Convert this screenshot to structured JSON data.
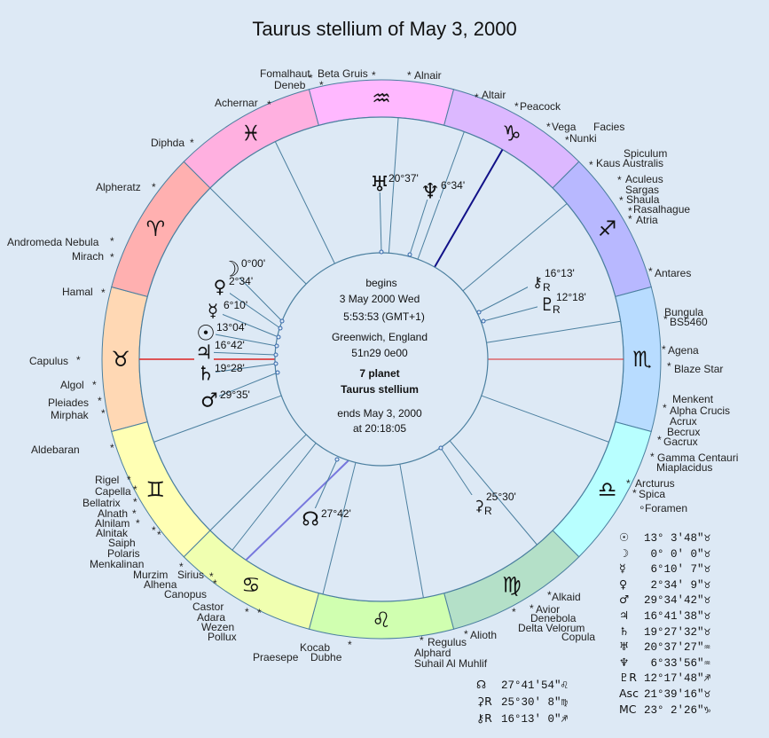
{
  "title": "Taurus stellium of May 3, 2000",
  "center": {
    "line1": "begins",
    "line2": "3 May 2000  Wed",
    "line3": "5:53:53 (GMT+1)",
    "line4": "Greenwich, England",
    "line5": "51n29  0e00",
    "line6": "7 planet",
    "line7": "Taurus stellium",
    "line8": "ends May 3, 2000",
    "line9": "at 20:18:05"
  },
  "colors": {
    "background": "#dde9f5",
    "ascendant_line": "#dd2222",
    "mc_line": "#111188",
    "node_line": "#7777dd",
    "spoke": "#4b7f9f",
    "zodiac": [
      "#ffd8b4",
      "#ffb0b0",
      "#ffb0e0",
      "#ffb8ff",
      "#dcb8ff",
      "#b8b8ff",
      "#b8dcff",
      "#b8ffff",
      "#b4e0c8",
      "#d0ffb0",
      "#f0ffb0",
      "#ffffb4"
    ]
  },
  "zodiac_glyphs": [
    "♉",
    "♈",
    "♓",
    "♒",
    "♑",
    "♐",
    "♏",
    "♎",
    "♍",
    "♌",
    "♋",
    "♊"
  ],
  "planets": [
    {
      "glyph": "☽",
      "label": "0°00'"
    },
    {
      "glyph": "♀",
      "label": "2°34'"
    },
    {
      "glyph": "☿",
      "label": "6°10'"
    },
    {
      "glyph": "☉",
      "label": "13°04'"
    },
    {
      "glyph": "♃",
      "label": "16°42'"
    },
    {
      "glyph": "♄",
      "label": "19°28'"
    },
    {
      "glyph": "♂",
      "label": "29°35'"
    },
    {
      "glyph": "♅",
      "label": "20°37'"
    },
    {
      "glyph": "♆",
      "label": "6°34'"
    },
    {
      "glyph": "⚷",
      "sub": "R",
      "label": "16°13'"
    },
    {
      "glyph": "♇",
      "sub": "R",
      "label": "12°18'"
    },
    {
      "glyph": "☊",
      "label": "27°42'"
    },
    {
      "glyph": "⚳",
      "sub": "R",
      "label": "25°30'"
    }
  ],
  "stars": [
    {
      "name": "Fomalhaut"
    },
    {
      "name": "Beta Gruis"
    },
    {
      "name": "Deneb"
    },
    {
      "name": "Alnair"
    },
    {
      "name": "Altair"
    },
    {
      "name": "Peacock"
    },
    {
      "name": "Achernar"
    },
    {
      "name": "Vega"
    },
    {
      "name": "Facies"
    },
    {
      "name": "Nunki"
    },
    {
      "name": "Diphda"
    },
    {
      "name": "Spiculum"
    },
    {
      "name": "Kaus Australis"
    },
    {
      "name": "Aculeus"
    },
    {
      "name": "Sargas"
    },
    {
      "name": "Shaula"
    },
    {
      "name": "Rasalhague"
    },
    {
      "name": "Atria"
    },
    {
      "name": "Alpheratz"
    },
    {
      "name": "Andromeda Nebula"
    },
    {
      "name": "Mirach"
    },
    {
      "name": "Antares"
    },
    {
      "name": "Hamal"
    },
    {
      "name": "Bungula"
    },
    {
      "name": "BS5460"
    },
    {
      "name": "Agena"
    },
    {
      "name": "Capulus"
    },
    {
      "name": "Blaze Star"
    },
    {
      "name": "Algol"
    },
    {
      "name": "Pleiades"
    },
    {
      "name": "Mirphak"
    },
    {
      "name": "Menkent"
    },
    {
      "name": "Alpha Crucis"
    },
    {
      "name": "Acrux"
    },
    {
      "name": "Becrux"
    },
    {
      "name": "Gacrux"
    },
    {
      "name": "Aldebaran"
    },
    {
      "name": "Gamma Centauri"
    },
    {
      "name": "Miaplacidus"
    },
    {
      "name": "Arcturus"
    },
    {
      "name": "Rigel"
    },
    {
      "name": "Capella"
    },
    {
      "name": "Spica"
    },
    {
      "name": "Bellatrix"
    },
    {
      "name": "Foramen"
    },
    {
      "name": "Alnath"
    },
    {
      "name": "Alnilam"
    },
    {
      "name": "Alnitak"
    },
    {
      "name": "Saiph"
    },
    {
      "name": "Polaris"
    },
    {
      "name": "Menkalinan"
    },
    {
      "name": "Murzim"
    },
    {
      "name": "Sirius"
    },
    {
      "name": "Alhena"
    },
    {
      "name": "Canopus"
    },
    {
      "name": "Alkaid"
    },
    {
      "name": "Castor"
    },
    {
      "name": "Avior"
    },
    {
      "name": "Adara"
    },
    {
      "name": "Denebola"
    },
    {
      "name": "Wezen"
    },
    {
      "name": "Delta Velorum"
    },
    {
      "name": "Pollux"
    },
    {
      "name": "Copula"
    },
    {
      "name": "Alioth"
    },
    {
      "name": "Regulus"
    },
    {
      "name": "Kocab"
    },
    {
      "name": "Alphard"
    },
    {
      "name": "Praesepe"
    },
    {
      "name": "Dubhe"
    },
    {
      "name": "Suhail Al Muhlif"
    }
  ],
  "positions_right": [
    {
      "glyph": "☉",
      "value": "13° 3'48\"♉"
    },
    {
      "glyph": "☽",
      "value": " 0° 0' 0\"♉"
    },
    {
      "glyph": "☿",
      "value": " 6°10' 7\"♉"
    },
    {
      "glyph": "♀",
      "value": " 2°34' 9\"♉"
    },
    {
      "glyph": "♂",
      "value": "29°34'42\"♉"
    },
    {
      "glyph": "♃",
      "value": "16°41'38\"♉"
    },
    {
      "glyph": "♄",
      "value": "19°27'32\"♉"
    },
    {
      "glyph": "♅",
      "value": "20°37'27\"♒"
    },
    {
      "glyph": "♆",
      "value": " 6°33'56\"♒"
    },
    {
      "glyph": "♇R",
      "value": "12°17'48\"♐"
    },
    {
      "glyph": "Asc",
      "value": "21°39'16\"♉"
    },
    {
      "glyph": "MC",
      "value": "23° 2'26\"♑"
    }
  ],
  "positions_left": [
    {
      "glyph": "☊",
      "value": "27°41'54\"♌"
    },
    {
      "glyph": "⚳R",
      "value": "25°30' 8\"♍"
    },
    {
      "glyph": "⚷R",
      "value": "16°13' 0\"♐"
    }
  ]
}
